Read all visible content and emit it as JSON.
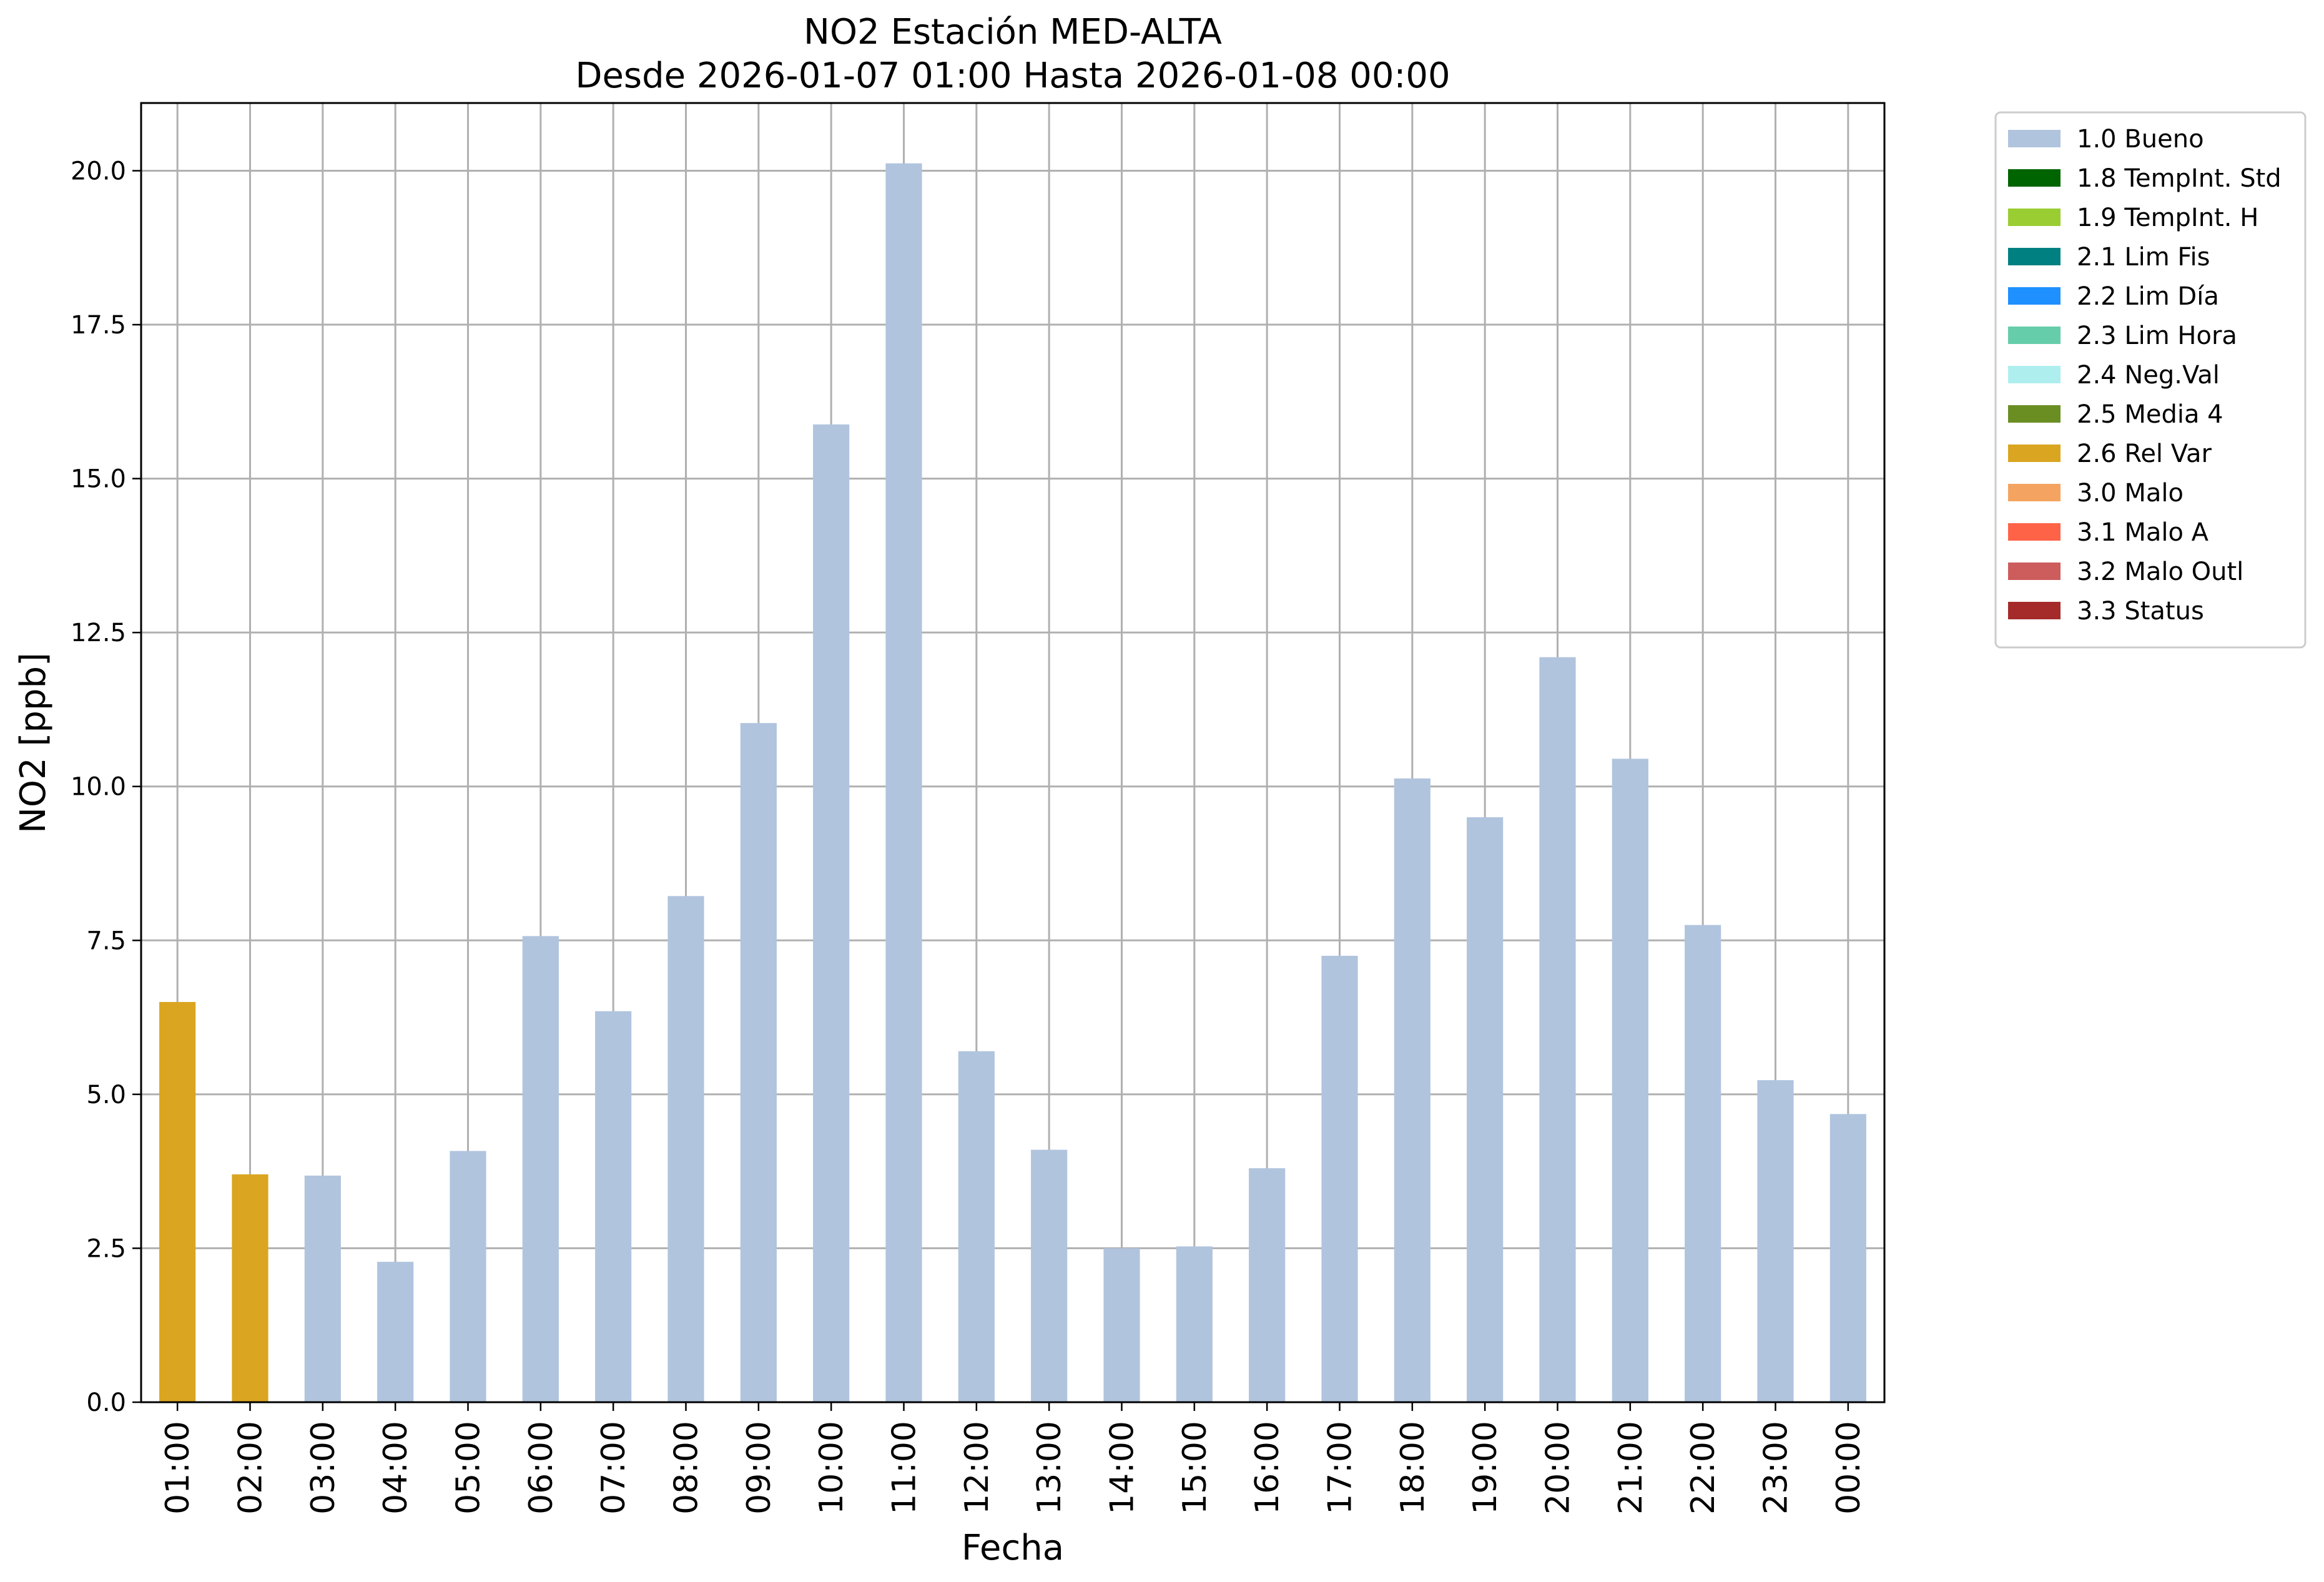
{
  "chart_data": {
    "type": "bar",
    "title": "NO2 Estación MED-ALTA",
    "subtitle": "Desde 2026-01-07 01:00 Hasta 2026-01-08 00:00",
    "xlabel": "Fecha",
    "ylabel": "NO2 [ppb]",
    "ylim": [
      0,
      21.1
    ],
    "yticks": [
      "0.0",
      "2.5",
      "5.0",
      "7.5",
      "10.0",
      "12.5",
      "15.0",
      "17.5",
      "20.0"
    ],
    "grid": true,
    "legend_placement": "outside right, top",
    "categories": [
      "01:00",
      "02:00",
      "03:00",
      "04:00",
      "05:00",
      "06:00",
      "07:00",
      "08:00",
      "09:00",
      "10:00",
      "11:00",
      "12:00",
      "13:00",
      "14:00",
      "15:00",
      "16:00",
      "17:00",
      "18:00",
      "19:00",
      "20:00",
      "21:00",
      "22:00",
      "23:00",
      "00:00"
    ],
    "values": [
      6.5,
      3.7,
      3.68,
      2.28,
      4.08,
      7.57,
      6.35,
      8.22,
      11.03,
      15.88,
      20.12,
      5.7,
      4.1,
      2.5,
      2.53,
      3.8,
      7.25,
      10.13,
      9.5,
      12.1,
      10.45,
      7.75,
      5.23,
      4.68
    ],
    "flags": [
      "2.6 Rel Var",
      "2.6 Rel Var",
      "1.0 Bueno",
      "1.0 Bueno",
      "1.0 Bueno",
      "1.0 Bueno",
      "1.0 Bueno",
      "1.0 Bueno",
      "1.0 Bueno",
      "1.0 Bueno",
      "1.0 Bueno",
      "1.0 Bueno",
      "1.0 Bueno",
      "1.0 Bueno",
      "1.0 Bueno",
      "1.0 Bueno",
      "1.0 Bueno",
      "1.0 Bueno",
      "1.0 Bueno",
      "1.0 Bueno",
      "1.0 Bueno",
      "1.0 Bueno",
      "1.0 Bueno",
      "1.0 Bueno"
    ],
    "legend": [
      {
        "label": "1.0 Bueno",
        "color": "#b0c4de"
      },
      {
        "label": "1.8 TempInt. Std",
        "color": "#006400"
      },
      {
        "label": "1.9 TempInt. H",
        "color": "#9acd32"
      },
      {
        "label": "2.1 Lim Fis",
        "color": "#008080"
      },
      {
        "label": "2.2 Lim Día",
        "color": "#1e90ff"
      },
      {
        "label": "2.3 Lim Hora",
        "color": "#66cdaa"
      },
      {
        "label": "2.4 Neg.Val",
        "color": "#afeeee"
      },
      {
        "label": "2.5 Media 4",
        "color": "#6b8e23"
      },
      {
        "label": "2.6 Rel Var",
        "color": "#daa520"
      },
      {
        "label": "3.0 Malo",
        "color": "#f4a460"
      },
      {
        "label": "3.1 Malo A",
        "color": "#ff6347"
      },
      {
        "label": "3.2 Malo Outl",
        "color": "#cd5c5c"
      },
      {
        "label": "3.3 Status",
        "color": "#a52a2a"
      }
    ]
  }
}
